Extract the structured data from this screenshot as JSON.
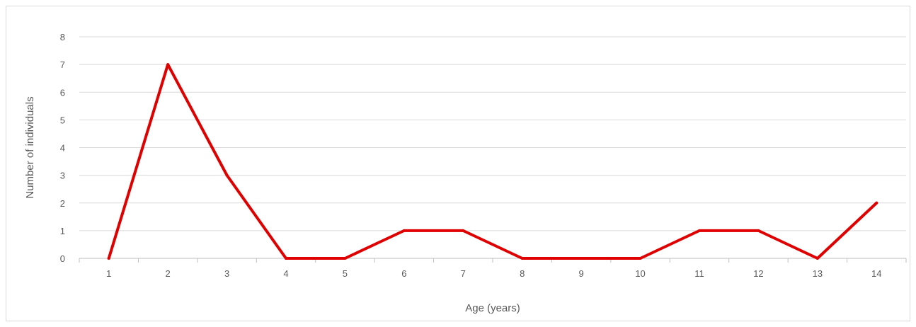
{
  "chart_data": {
    "type": "line",
    "title": "",
    "xlabel": "Age (years)",
    "ylabel": "Number of individuals",
    "categories": [
      "1",
      "2",
      "3",
      "4",
      "5",
      "6",
      "7",
      "8",
      "9",
      "10",
      "11",
      "12",
      "13",
      "14"
    ],
    "series": [
      {
        "values": [
          0,
          7,
          3,
          0,
          0,
          1,
          1,
          0,
          0,
          0,
          1,
          1,
          0,
          2
        ],
        "color": "#e00000"
      }
    ],
    "ylim": [
      0,
      8
    ],
    "yticks": [
      "0",
      "1",
      "2",
      "3",
      "4",
      "5",
      "6",
      "7",
      "8"
    ],
    "grid": true,
    "legend": "none",
    "colors": {
      "gridline": "#d9d9d9",
      "axis": "#bfbfbf",
      "text": "#595959"
    }
  }
}
